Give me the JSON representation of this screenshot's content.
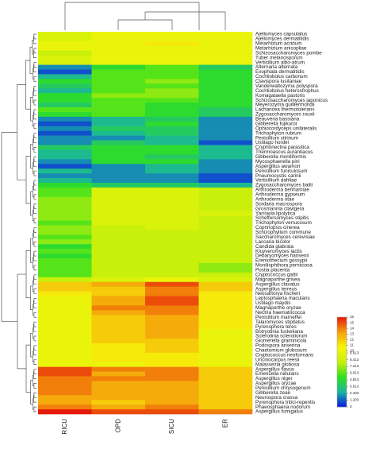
{
  "chart_data": {
    "type": "heatmap",
    "columns": [
      "RICU",
      "OPD",
      "SICU",
      "ER"
    ],
    "rows": [
      "Ajellomyces capsulatus",
      "Ajellomyces dermatitidis",
      "Metarhizium acridum",
      "Metarhizium anisopliae",
      "Schizosaccharomyces pombe",
      "Tuber melanosporum",
      "Verticillium albo-atrum",
      "Alternaria alternata",
      "Exophiala dermatitidis",
      "Cochliobolus carbonum",
      "Clavispora lusitaniae",
      "Vanderwaltozyma polyspora",
      "Cochliobolus heterostrophus",
      "Komagataella pastoris",
      "Schizosaccharomyces japonicus",
      "Meyerozyma guilliermondii",
      "Lachancea thermotolerans",
      "Zygosaccharomyces rouxii",
      "Beauveria bassiana",
      "Gibberella fujikuroi",
      "Ophiocordyceps unilateralis",
      "Trichophyton rubrum",
      "Penicillium citrinum",
      "Ustilago hordei",
      "Cryphonectria parasitica",
      "Thermoascus aurantiacus",
      "Gibberella moniliformis",
      "Mycosphaerella pini",
      "Aspergillus awamori",
      "Penicillium funiculosum",
      "Pneumocystis carinii",
      "Verticillium dahliae",
      "Zygosaccharomyces bailii",
      "Arthroderma benhamiae",
      "Arthroderma gypseum",
      "Arthroderma otae",
      "Sordaria macrospora",
      "Grosmannia clavigera",
      "Yarrowia lipolytica",
      "Scheffersomyces stipitis",
      "Trichophyton verrucosum",
      "Coprinopsis cinerea",
      "Schizophyllum commune",
      "Saccharomyces cerevisiae",
      "Laccaria bicolor",
      "Candida glabrata",
      "Kluyveromyces lactis",
      "Debaryomyces hansenii",
      "Eremothecium gossypii",
      "Moniliophthora perniciosa",
      "Postia placenta",
      "Cryptococcus gattii",
      "Magnaporthe grisea",
      "Aspergillus clavatus",
      "Aspergillus terreus",
      "Neosartorya fischeri",
      "Leptosphaeria maculans",
      "Ustilago maydis",
      "Magnaporthe oryzae",
      "Nectria haematococca",
      "Penicillium marneffei",
      "Talaromyces stipitatus",
      "Pyrenophora teres",
      "Botryotinia fuckeliana",
      "Sclerotinia sclerotiorum",
      "Glomerella graminicola",
      "Podospora anserina",
      "Chaetomium globosum",
      "Cryptococcus neoformans",
      "Uncinocarpus reesii",
      "Malassezia globosa",
      "Aspergillus flavus",
      "Emericella nidulans",
      "Aspergillus niger",
      "Aspergillus oryzae",
      "Penicillium chrysogenum",
      "Gibberella zeae",
      "Neurospora crassa",
      "Pyrenophora tritici-repentis",
      "Phaeosphaeria nodorum",
      "Aspergillus fumigatus"
    ],
    "values": [
      [
        9,
        10,
        10,
        10
      ],
      [
        9,
        10,
        10,
        10
      ],
      [
        10,
        10,
        11,
        10
      ],
      [
        10,
        10,
        10,
        10
      ],
      [
        8,
        10,
        10,
        10
      ],
      [
        9,
        10,
        10,
        10
      ],
      [
        9,
        10,
        10,
        10
      ],
      [
        2,
        5,
        6,
        4
      ],
      [
        1,
        6,
        6,
        5
      ],
      [
        3,
        6,
        6,
        5
      ],
      [
        5,
        6,
        7,
        5
      ],
      [
        4,
        6,
        6,
        5
      ],
      [
        3,
        6,
        7,
        5
      ],
      [
        5,
        7,
        7,
        5
      ],
      [
        5,
        6,
        6,
        5
      ],
      [
        4,
        6,
        5,
        5
      ],
      [
        6,
        6,
        5,
        4
      ],
      [
        5,
        6,
        5,
        4
      ],
      [
        2,
        3,
        4,
        2
      ],
      [
        1,
        3,
        5,
        2
      ],
      [
        2,
        4,
        4,
        2
      ],
      [
        1,
        3,
        4,
        2
      ],
      [
        2,
        2,
        3,
        2
      ],
      [
        2,
        4,
        3,
        1
      ],
      [
        4,
        5,
        5,
        3
      ],
      [
        3,
        5,
        5,
        3
      ],
      [
        3,
        5,
        4,
        3
      ],
      [
        2,
        5,
        5,
        2
      ],
      [
        1,
        2,
        3,
        2
      ],
      [
        3,
        2,
        3,
        2
      ],
      [
        2,
        2,
        2,
        1
      ],
      [
        3,
        2,
        2,
        1
      ],
      [
        5,
        4,
        4,
        3
      ],
      [
        6,
        9,
        9,
        8
      ],
      [
        6,
        9,
        9,
        8
      ],
      [
        7,
        9,
        9,
        8
      ],
      [
        7,
        9,
        9,
        8
      ],
      [
        7,
        9,
        9,
        8
      ],
      [
        7,
        9,
        9,
        9
      ],
      [
        7,
        9,
        9,
        8
      ],
      [
        6,
        9,
        9,
        8
      ],
      [
        7,
        8,
        9,
        8
      ],
      [
        7,
        8,
        8,
        8
      ],
      [
        6,
        8,
        8,
        8
      ],
      [
        7,
        8,
        8,
        8
      ],
      [
        5,
        8,
        8,
        8
      ],
      [
        6,
        8,
        8,
        8
      ],
      [
        5,
        8,
        8,
        8
      ],
      [
        6,
        8,
        8,
        8
      ],
      [
        6,
        8,
        8,
        7
      ],
      [
        6,
        8,
        8,
        7
      ],
      [
        6,
        8,
        8,
        8
      ],
      [
        8,
        9,
        10,
        9
      ],
      [
        12,
        13,
        15,
        12
      ],
      [
        12,
        12,
        14,
        12
      ],
      [
        11,
        12,
        14,
        11
      ],
      [
        10,
        13,
        15,
        11
      ],
      [
        10,
        13,
        15,
        11
      ],
      [
        10,
        14,
        14,
        11
      ],
      [
        10,
        13,
        14,
        11
      ],
      [
        10,
        12,
        13,
        11
      ],
      [
        10,
        12,
        13,
        11
      ],
      [
        10,
        12,
        13,
        11
      ],
      [
        10,
        12,
        13,
        10
      ],
      [
        10,
        12,
        13,
        10
      ],
      [
        10,
        12,
        12,
        10
      ],
      [
        10,
        11,
        12,
        10
      ],
      [
        10,
        11,
        12,
        10
      ],
      [
        10,
        11,
        11,
        10
      ],
      [
        10,
        11,
        11,
        10
      ],
      [
        10,
        10,
        11,
        10
      ],
      [
        15,
        14,
        14,
        12
      ],
      [
        15,
        13,
        14,
        12
      ],
      [
        14,
        14,
        14,
        12
      ],
      [
        14,
        13,
        13,
        12
      ],
      [
        14,
        13,
        13,
        12
      ],
      [
        14,
        13,
        13,
        12
      ],
      [
        13,
        13,
        13,
        12
      ],
      [
        13,
        12,
        13,
        12
      ],
      [
        14,
        13,
        14,
        12
      ],
      [
        16,
        15,
        15,
        14
      ]
    ],
    "zlim": [
      0,
      16
    ],
    "colors": [
      "#0a14e6",
      "#1ab4a0",
      "#2ee01e",
      "#c8f00a",
      "#f5f50a",
      "#f5a00a",
      "#e61a0a"
    ],
    "colorbar_ticks": [
      16,
      15,
      14,
      13,
      12,
      11,
      10,
      9.613,
      8.413,
      7.213,
      6.013,
      4.813,
      3.613,
      2.403,
      1.203,
      0
    ]
  }
}
